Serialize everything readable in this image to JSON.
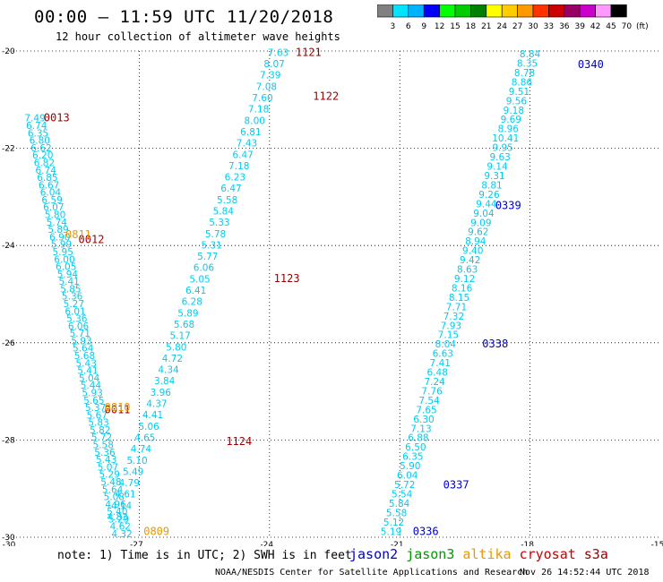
{
  "header": {
    "title": "00:00 – 11:59 UTC 11/20/2018",
    "subtitle": "12 hour collection of altimeter wave heights"
  },
  "colorbar": {
    "labels": [
      "3",
      "6",
      "9",
      "12",
      "15",
      "18",
      "21",
      "24",
      "27",
      "30",
      "33",
      "36",
      "39",
      "42",
      "45",
      "70",
      "(ft)"
    ],
    "colors": [
      "#808080",
      "#00e5ff",
      "#00b3ff",
      "#0000ff",
      "#00ff00",
      "#00cc00",
      "#008000",
      "#ffff00",
      "#ffcc00",
      "#ff9900",
      "#ff3300",
      "#cc0000",
      "#990066",
      "#cc00cc",
      "#ff99ff",
      "#000000"
    ]
  },
  "footer": {
    "note": "note: 1) Time is in UTC; 2) SWH is in feet",
    "legend": [
      {
        "name": "jason2",
        "color": "#0000cc"
      },
      {
        "name": "jason3",
        "color": "#009900"
      },
      {
        "name": "altika",
        "color": "#e69900"
      },
      {
        "name": "cryosat",
        "color": "#cc0000"
      },
      {
        "name": "s3a",
        "color": "#990000"
      }
    ],
    "credit": "NOAA/NESDIS Center for Satellite Applications and Research",
    "timestamp": "Nov 26 14:52:44 UTC 2018"
  },
  "chart_data": {
    "type": "scatter",
    "title": "12 hour collection of altimeter wave heights",
    "xlim": [
      -30,
      -15
    ],
    "ylim": [
      -30,
      -20
    ],
    "x_ticks": [
      "-30",
      "-27",
      "-24",
      "-21",
      "-18",
      "-15"
    ],
    "y_ticks": [
      "-20",
      "-22",
      "-24",
      "-26",
      "-28",
      "-30"
    ],
    "vlines": [
      -27,
      -24,
      -21,
      -18
    ],
    "hlines": [
      -22,
      -24,
      -26,
      -28
    ],
    "tracks": [
      {
        "satellite": "jason2",
        "color": "#0000cc",
        "time_label": "0340",
        "label_at": [
          -16.9,
          -20.35
        ],
        "start": [
          -18.0,
          -20.13
        ],
        "end": [
          -21.2,
          -29.95
        ],
        "values": [
          "8.84",
          "8.35",
          "8.78",
          "8.86",
          "9.51",
          "9.56",
          "9.18",
          "9.69",
          "8.96",
          "10.41",
          "9.95",
          "9.63",
          "9.14",
          "9.31",
          "8.81",
          "9.26",
          "9.44",
          "9.04",
          "9.09",
          "9.62",
          "8.94",
          "9.40",
          "9.42",
          "8.63",
          "9.12",
          "8.16",
          "8.15",
          "7.71",
          "7.32",
          "7.93",
          "7.15",
          "8.04",
          "6.63",
          "7.41",
          "6.48",
          "7.24",
          "7.76",
          "7.54",
          "7.65",
          "6.30",
          "7.13",
          "6.88",
          "6.50",
          "6.35",
          "5.90",
          "6.04",
          "5.72",
          "5.54",
          "5.84",
          "5.58",
          "5.12",
          "5.19"
        ],
        "time_marks": [
          {
            "text": "0339",
            "at": [
              -18.8,
              -23.25
            ]
          },
          {
            "text": "0338",
            "at": [
              -19.1,
              -26.1
            ]
          },
          {
            "text": "0337",
            "at": [
              -20.0,
              -29.0
            ]
          },
          {
            "text": "0336",
            "at": [
              -20.7,
              -29.95
            ]
          }
        ]
      },
      {
        "satellite": "s3a",
        "color": "#990000",
        "time_label": "1121",
        "label_at": [
          -23.4,
          -20.1
        ],
        "start": [
          -23.8,
          -20.1
        ],
        "end": [
          -27.5,
          -29.65
        ],
        "values": [
          "7.63",
          "8.07",
          "7.39",
          "7.08",
          "7.60",
          "7.18",
          "8.00",
          "6.81",
          "7.43",
          "6.47",
          "7.18",
          "6.23",
          "6.47",
          "5.58",
          "5.84",
          "5.33",
          "5.78",
          "5.31",
          "5.77",
          "6.06",
          "5.05",
          "6.41",
          "6.28",
          "5.89",
          "5.68",
          "5.17",
          "5.80",
          "4.72",
          "4.34",
          "3.84",
          "3.96",
          "4.37",
          "4.41",
          "5.06",
          "4.65",
          "4.74",
          "5.10",
          "5.49",
          "4.79",
          "4.61",
          "4.14",
          "4.83"
        ],
        "time_marks": [
          {
            "text": "1122",
            "at": [
              -23.0,
              -21.0
            ]
          },
          {
            "text": "1123",
            "at": [
              -23.9,
              -24.75
            ]
          },
          {
            "text": "1124",
            "at": [
              -25.0,
              -28.1
            ]
          }
        ]
      },
      {
        "satellite": "s3a",
        "color": "#990000",
        "time_label": "0013",
        "label_at": [
          -29.2,
          -21.45
        ],
        "start": [
          -29.4,
          -21.45
        ],
        "end": [
          -27.4,
          -30.0
        ],
        "values": [
          "7.49",
          "6.74",
          "6.35",
          "6.80",
          "6.62",
          "6.20",
          "6.82",
          "6.74",
          "6.85",
          "6.67",
          "6.04",
          "6.59",
          "6.07",
          "5.80",
          "5.74",
          "5.89",
          "6.90",
          "5.99",
          "5.95",
          "6.00",
          "6.05",
          "5.94",
          "5.41",
          "5.85",
          "5.36",
          "5.27",
          "6.01",
          "5.36",
          "6.06",
          "5.71",
          "5.93",
          "5.64",
          "5.68",
          "5.43",
          "5.41",
          "5.04",
          "5.44",
          "5.93",
          "5.65",
          "5.37",
          "5.67",
          "5.83",
          "5.82",
          "5.72",
          "5.58",
          "5.36",
          "5.43",
          "5.07",
          "5.29",
          "5.48",
          "5.64",
          "5.08",
          "4.96",
          "5.40",
          "5.29",
          "4.62",
          "4.32"
        ],
        "time_marks": [
          {
            "text": "0012",
            "at": [
              -28.4,
              -23.95
            ]
          },
          {
            "text": "0011",
            "at": [
              -27.8,
              -27.45
            ]
          }
        ]
      },
      {
        "satellite": "altika",
        "color": "#e69900",
        "time_label": "0811",
        "label_at": [
          -28.7,
          -23.85
        ],
        "start": [
          -28.5,
          -23.85
        ],
        "end": [
          -28.5,
          -23.85
        ],
        "values": [],
        "time_marks": [
          {
            "text": "0810",
            "at": [
              -27.8,
              -27.4
            ]
          },
          {
            "text": "0809",
            "at": [
              -26.9,
              -29.95
            ]
          }
        ]
      }
    ]
  }
}
